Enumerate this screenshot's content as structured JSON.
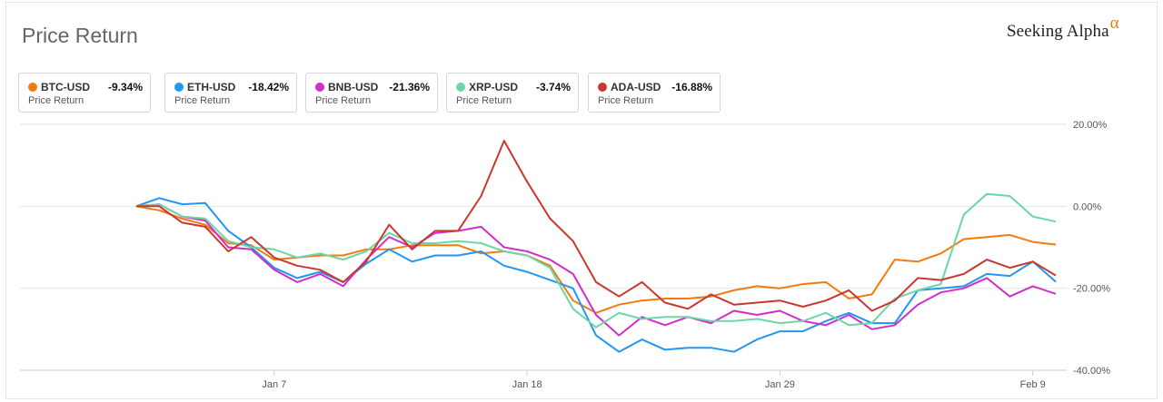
{
  "header": {
    "title": "Price Return",
    "brand_name": "Seeking Alpha",
    "brand_symbol": "α"
  },
  "legend": [
    {
      "symbol": "BTC-USD",
      "value": "-9.34%",
      "sub": "Price Return",
      "color": "#f27b10"
    },
    {
      "symbol": "ETH-USD",
      "value": "-18.42%",
      "sub": "Price Return",
      "color": "#2196f3"
    },
    {
      "symbol": "BNB-USD",
      "value": "-21.36%",
      "sub": "Price Return",
      "color": "#d12ec9"
    },
    {
      "symbol": "XRP-USD",
      "value": "-3.74%",
      "sub": "Price Return",
      "color": "#6dd6a5"
    },
    {
      "symbol": "ADA-USD",
      "value": "-16.88%",
      "sub": "Price Return",
      "color": "#c9382f"
    }
  ],
  "chart_data": {
    "type": "line",
    "x_tick_labels": [
      "Jan 7",
      "Jan 18",
      "Jan 29",
      "Feb 9"
    ],
    "x_tick_days": [
      6,
      17,
      28,
      39
    ],
    "y_tick_labels": [
      "20.00%",
      "0.00%",
      "-20.00%",
      "-40.00%"
    ],
    "y_tick_values": [
      20,
      0,
      -20,
      -40
    ],
    "ylim": [
      -40,
      20
    ],
    "grid": "horizontal",
    "series": [
      {
        "name": "BTC-USD",
        "color": "#f27b10",
        "values": [
          0,
          -1,
          -3,
          -4.5,
          -9,
          -9.5,
          -13,
          -12.5,
          -12,
          -12,
          -10.5,
          -10.5,
          -9.5,
          -9.5,
          -9.5,
          -11.5,
          -11,
          -12,
          -14.5,
          -23,
          -26,
          -24,
          -23,
          -22.5,
          -22.5,
          -22,
          -20.5,
          -19.5,
          -20,
          -19,
          -18.5,
          -22.5,
          -21.5,
          -13,
          -13.5,
          -11.5,
          -8,
          -7.5,
          -7,
          -8.7,
          -9.34
        ]
      },
      {
        "name": "ETH-USD",
        "color": "#2196f3",
        "values": [
          0,
          2,
          0.5,
          0.8,
          -6,
          -10,
          -15,
          -17.5,
          -16,
          -18.5,
          -14,
          -10.5,
          -13.5,
          -12,
          -12,
          -11,
          -14.5,
          -16,
          -18,
          -20,
          -31.5,
          -35.5,
          -32.5,
          -35,
          -34.5,
          -34.5,
          -35.5,
          -32.5,
          -30.5,
          -30.5,
          -28,
          -26,
          -28.5,
          -28.5,
          -20.5,
          -20,
          -19.5,
          -16.5,
          -17,
          -13.5,
          -18.42
        ]
      },
      {
        "name": "BNB-USD",
        "color": "#d12ec9",
        "values": [
          0,
          0.5,
          -2.5,
          -3.5,
          -10,
          -10.5,
          -15.5,
          -18.5,
          -16.5,
          -19.5,
          -13,
          -7.5,
          -10,
          -6.5,
          -6,
          -5,
          -10,
          -11,
          -13,
          -16.5,
          -26.5,
          -31.5,
          -27,
          -29,
          -27,
          -28.5,
          -25.5,
          -26.5,
          -25.5,
          -28,
          -29,
          -26.5,
          -30,
          -29,
          -24,
          -21,
          -20,
          -17.5,
          -22,
          -19.5,
          -21.36
        ]
      },
      {
        "name": "XRP-USD",
        "color": "#6dd6a5",
        "values": [
          0,
          0.5,
          -2.5,
          -3,
          -8.5,
          -10,
          -10.5,
          -12.5,
          -11.5,
          -13,
          -11,
          -6.5,
          -9,
          -9,
          -8.5,
          -9,
          -11,
          -12,
          -15,
          -25,
          -29.5,
          -26,
          -27.5,
          -27,
          -27,
          -28,
          -28,
          -27.5,
          -28.5,
          -28,
          -26,
          -29,
          -28.5,
          -22.5,
          -20.5,
          -19,
          -2,
          3,
          2.5,
          -2.5,
          -3.74
        ]
      },
      {
        "name": "ADA-USD",
        "color": "#c9382f",
        "values": [
          0,
          0,
          -4,
          -5,
          -11,
          -7.5,
          -12.5,
          -14.5,
          -15.5,
          -18.5,
          -13.5,
          -4.5,
          -10.5,
          -6,
          -6,
          2.5,
          16,
          6,
          -3,
          -8.5,
          -18.5,
          -22,
          -18.5,
          -23.5,
          -25,
          -21.5,
          -24,
          -23.5,
          -23,
          -24.5,
          -23,
          -20.5,
          -25.5,
          -23,
          -17.5,
          -18,
          -16.5,
          -13,
          -15,
          -13.5,
          -16.88
        ]
      }
    ]
  }
}
